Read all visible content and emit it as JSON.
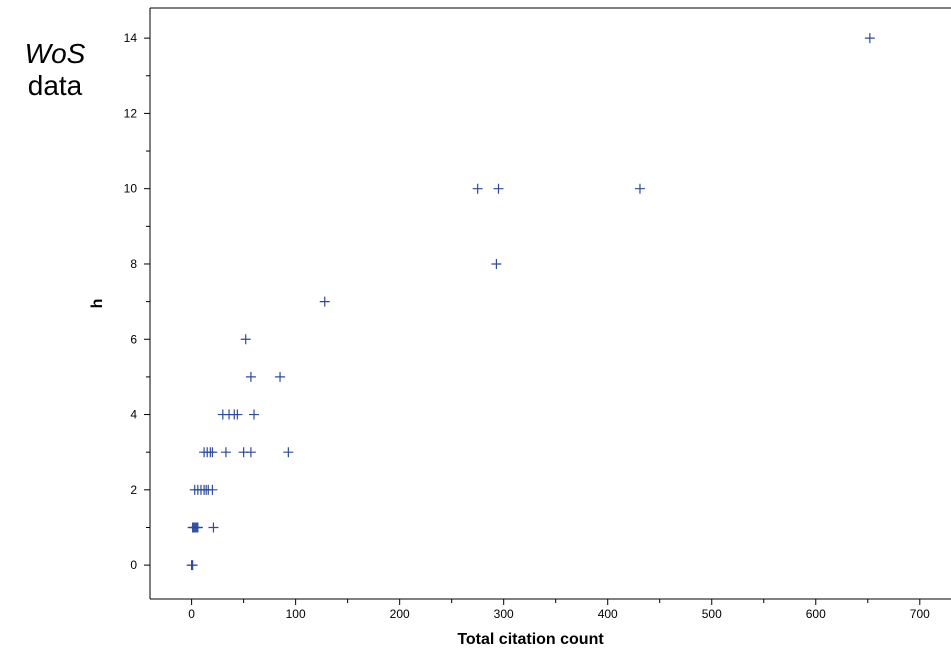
{
  "annotation": {
    "italic": "WoS",
    "plain": "data"
  },
  "chart_data": {
    "type": "scatter",
    "title": "",
    "xlabel": "Total citation count",
    "ylabel": "h",
    "xlim": [
      -40,
      730
    ],
    "ylim": [
      -0.9,
      14.8
    ],
    "xticks": [
      0,
      100,
      200,
      300,
      400,
      500,
      600,
      700
    ],
    "yticks": [
      0,
      2,
      4,
      6,
      8,
      10,
      12,
      14
    ],
    "grid": false,
    "marker": "plus",
    "color": "#2E4A9E",
    "series": [
      {
        "points": [
          [
            0,
            0
          ],
          [
            1,
            0
          ],
          [
            1,
            1
          ],
          [
            2,
            1
          ],
          [
            3,
            1
          ],
          [
            4,
            1
          ],
          [
            5,
            1
          ],
          [
            6,
            1
          ],
          [
            21,
            1
          ],
          [
            3,
            2
          ],
          [
            6,
            2
          ],
          [
            9,
            2
          ],
          [
            12,
            2
          ],
          [
            14,
            2
          ],
          [
            16,
            2
          ],
          [
            20,
            2
          ],
          [
            12,
            3
          ],
          [
            15,
            3
          ],
          [
            18,
            3
          ],
          [
            20,
            3
          ],
          [
            33,
            3
          ],
          [
            50,
            3
          ],
          [
            57,
            3
          ],
          [
            93,
            3
          ],
          [
            30,
            4
          ],
          [
            36,
            4
          ],
          [
            41,
            4
          ],
          [
            44,
            4
          ],
          [
            60,
            4
          ],
          [
            52,
            6
          ],
          [
            57,
            5
          ],
          [
            85,
            5
          ],
          [
            128,
            7
          ],
          [
            275,
            10
          ],
          [
            295,
            10
          ],
          [
            293,
            8
          ],
          [
            431,
            10
          ],
          [
            652,
            14
          ]
        ]
      }
    ]
  }
}
